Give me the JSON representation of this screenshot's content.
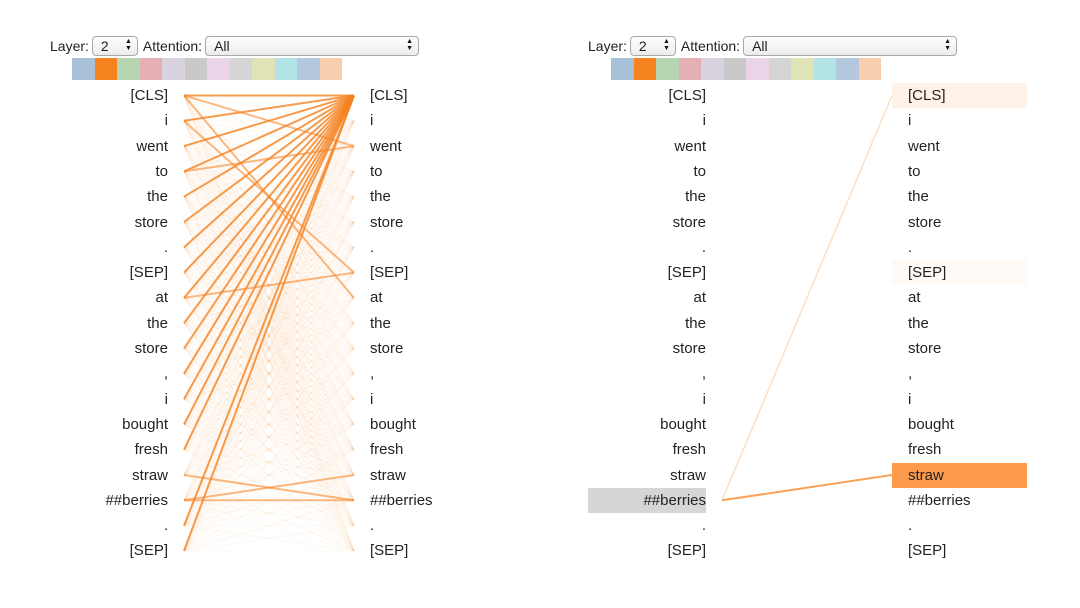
{
  "panels": [
    {
      "id": "left",
      "controls": {
        "layer_label": "Layer:",
        "layer_value": "2",
        "attention_label": "Attention:",
        "attention_value": "All"
      },
      "heads": {
        "colors": [
          "#a8c1d9",
          "#f5821f",
          "#b5d6b0",
          "#e4b0b4",
          "#d9d3e0",
          "#c9c9c9",
          "#ebd3e8",
          "#d5d5d5",
          "#dfe3b5",
          "#b2e3e6",
          "#b3c8dc",
          "#f7cfae"
        ],
        "selected": 1
      },
      "left_tokens": [
        "[CLS]",
        "i",
        "went",
        "to",
        "the",
        "store",
        ".",
        "[SEP]",
        "at",
        "the",
        "store",
        ",",
        "i",
        "bought",
        "fresh",
        "straw",
        "##berries",
        ".",
        "[SEP]"
      ],
      "right_tokens": [
        "[CLS]",
        "i",
        "went",
        "to",
        "the",
        "store",
        ".",
        "[SEP]",
        "at",
        "the",
        "store",
        ",",
        "i",
        "bought",
        "fresh",
        "straw",
        "##berries",
        ".",
        "[SEP]"
      ],
      "highlight": {
        "left": null,
        "right": null
      }
    },
    {
      "id": "right",
      "controls": {
        "layer_label": "Layer:",
        "layer_value": "2",
        "attention_label": "Attention:",
        "attention_value": "All"
      },
      "heads": {
        "colors": [
          "#a8c1d9",
          "#f5821f",
          "#b5d6b0",
          "#e4b0b4",
          "#d9d3e0",
          "#c9c9c9",
          "#ebd3e8",
          "#d5d5d5",
          "#dfe3b5",
          "#b2e3e6",
          "#b3c8dc",
          "#f7cfae"
        ],
        "selected": 1
      },
      "left_tokens": [
        "[CLS]",
        "i",
        "went",
        "to",
        "the",
        "store",
        ".",
        "[SEP]",
        "at",
        "the",
        "store",
        ",",
        "i",
        "bought",
        "fresh",
        "straw",
        "##berries",
        ".",
        "[SEP]"
      ],
      "right_tokens": [
        "[CLS]",
        "i",
        "went",
        "to",
        "the",
        "store",
        ".",
        "[SEP]",
        "at",
        "the",
        "store",
        ",",
        "i",
        "bought",
        "fresh",
        "straw",
        "##berries",
        ".",
        "[SEP]"
      ],
      "highlight": {
        "left": 16,
        "right": 15
      }
    }
  ],
  "attention_color": "#f5821f",
  "left_panel_strong_links": [
    [
      0,
      0
    ],
    [
      1,
      0
    ],
    [
      2,
      0
    ],
    [
      3,
      0
    ],
    [
      4,
      0
    ],
    [
      5,
      0
    ],
    [
      6,
      0
    ],
    [
      7,
      0
    ],
    [
      8,
      0
    ],
    [
      9,
      0
    ],
    [
      10,
      0
    ],
    [
      11,
      0
    ],
    [
      12,
      0
    ],
    [
      13,
      0
    ],
    [
      14,
      0
    ],
    [
      16,
      15
    ],
    [
      15,
      16
    ],
    [
      17,
      0
    ],
    [
      18,
      0
    ],
    [
      0,
      2
    ],
    [
      1,
      7
    ],
    [
      8,
      7
    ],
    [
      16,
      16
    ],
    [
      3,
      2
    ],
    [
      0,
      8
    ]
  ],
  "right_panel_links": [
    [
      16,
      15
    ],
    [
      16,
      0
    ]
  ]
}
